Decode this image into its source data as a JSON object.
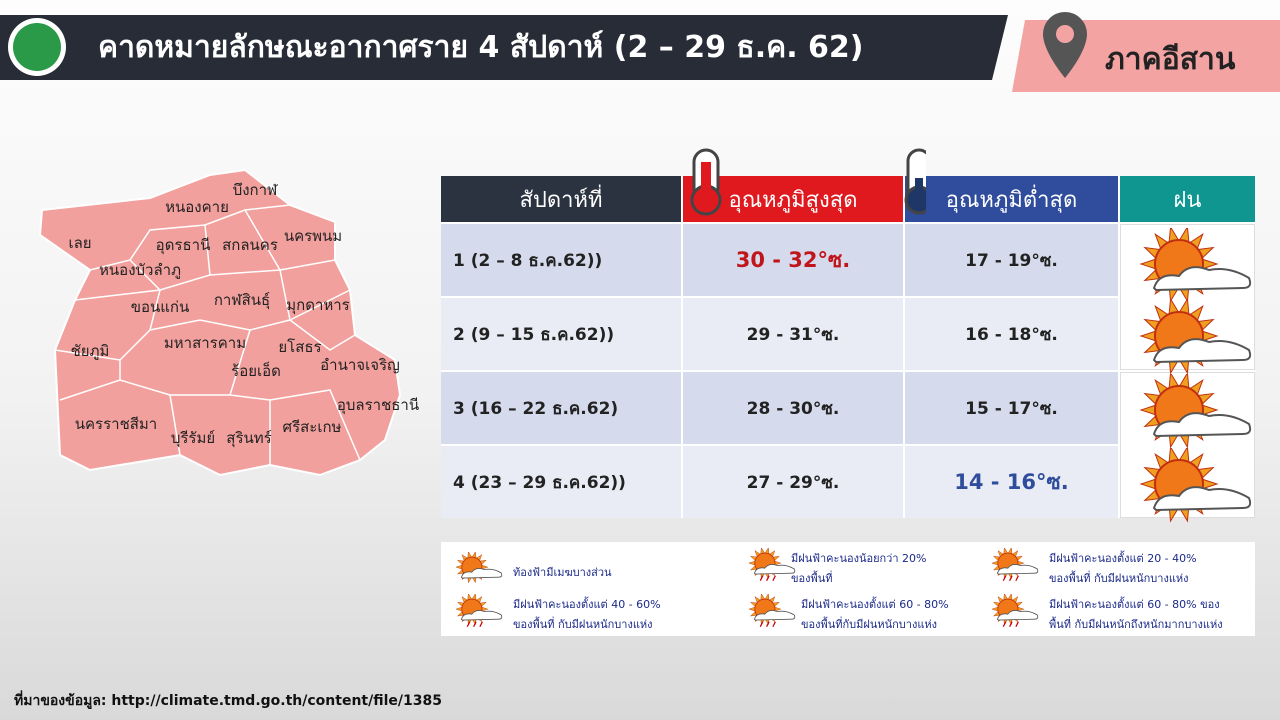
{
  "header": {
    "title": "คาดหมายลักษณะอากาศราย 4 สัปดาห์ (2 – 29 ธ.ค. 62)",
    "region": "ภาคอีสาน"
  },
  "map": {
    "provinces": [
      "บึงกาฬ",
      "หนองคาย",
      "นครพนม",
      "เลย",
      "อุดรธานี",
      "สกลนคร",
      "หนองบัวลำภู",
      "ขอนแก่น",
      "กาฬสินธุ์",
      "มุกดาหาร",
      "ชัยภูมิ",
      "มหาสารคาม",
      "ยโสธร",
      "อำนาจเจริญ",
      "ร้อยเอ็ด",
      "อุบลราชธานี",
      "นครราชสีมา",
      "บุรีรัมย์",
      "สุรินทร์",
      "ศรีสะเกษ"
    ]
  },
  "table": {
    "headers": [
      "สัปดาห์ที่",
      "อุณหภูมิสูงสุด",
      "อุณหภูมิต่ำสุด",
      "ฝน"
    ],
    "rows": [
      [
        "1 (2 – 8 ธ.ค.62))",
        "30 - 32°ซ.",
        "17 - 19°ซ."
      ],
      [
        "2 (9 – 15 ธ.ค.62))",
        "29 - 31°ซ.",
        "16 - 18°ซ."
      ],
      [
        "3 (16 – 22 ธ.ค.62)",
        "28 - 30°ซ.",
        "15 - 17°ซ."
      ],
      [
        "4 (23 – 29 ธ.ค.62))",
        "27 - 29°ซ.",
        "14 - 16°ซ."
      ]
    ]
  },
  "legend": {
    "items": [
      [
        "ท้องฟ้ามีเมฆบางส่วน"
      ],
      [
        "มีฝนฟ้าคะนองน้อยกว่า 20%",
        "ของพื้นที่"
      ],
      [
        "มีฝนฟ้าคะนองตั้งแต่ 20 - 40%",
        "ของพื้นที่ กับมีฝนหนักบางแห่ง"
      ],
      [
        "มีฝนฟ้าคะนองตั้งแต่ 40 - 60%",
        "ของพื้นที่ กับมีฝนหนักบางแห่ง"
      ],
      [
        "มีฝนฟ้าคะนองตั้งแต่ 60 - 80%",
        "ของพื้นที่กับมีฝนหนักบางแห่ง"
      ],
      [
        "มีฝนฟ้าคะนองตั้งแต่ 60 - 80% ของ",
        "พื้นที่ กับมีฝนหนักถึงหนักมากบางแห่ง"
      ]
    ]
  },
  "source": "ที่มาของข้อมูล: http://climate.tmd.go.th/content/file/1385"
}
